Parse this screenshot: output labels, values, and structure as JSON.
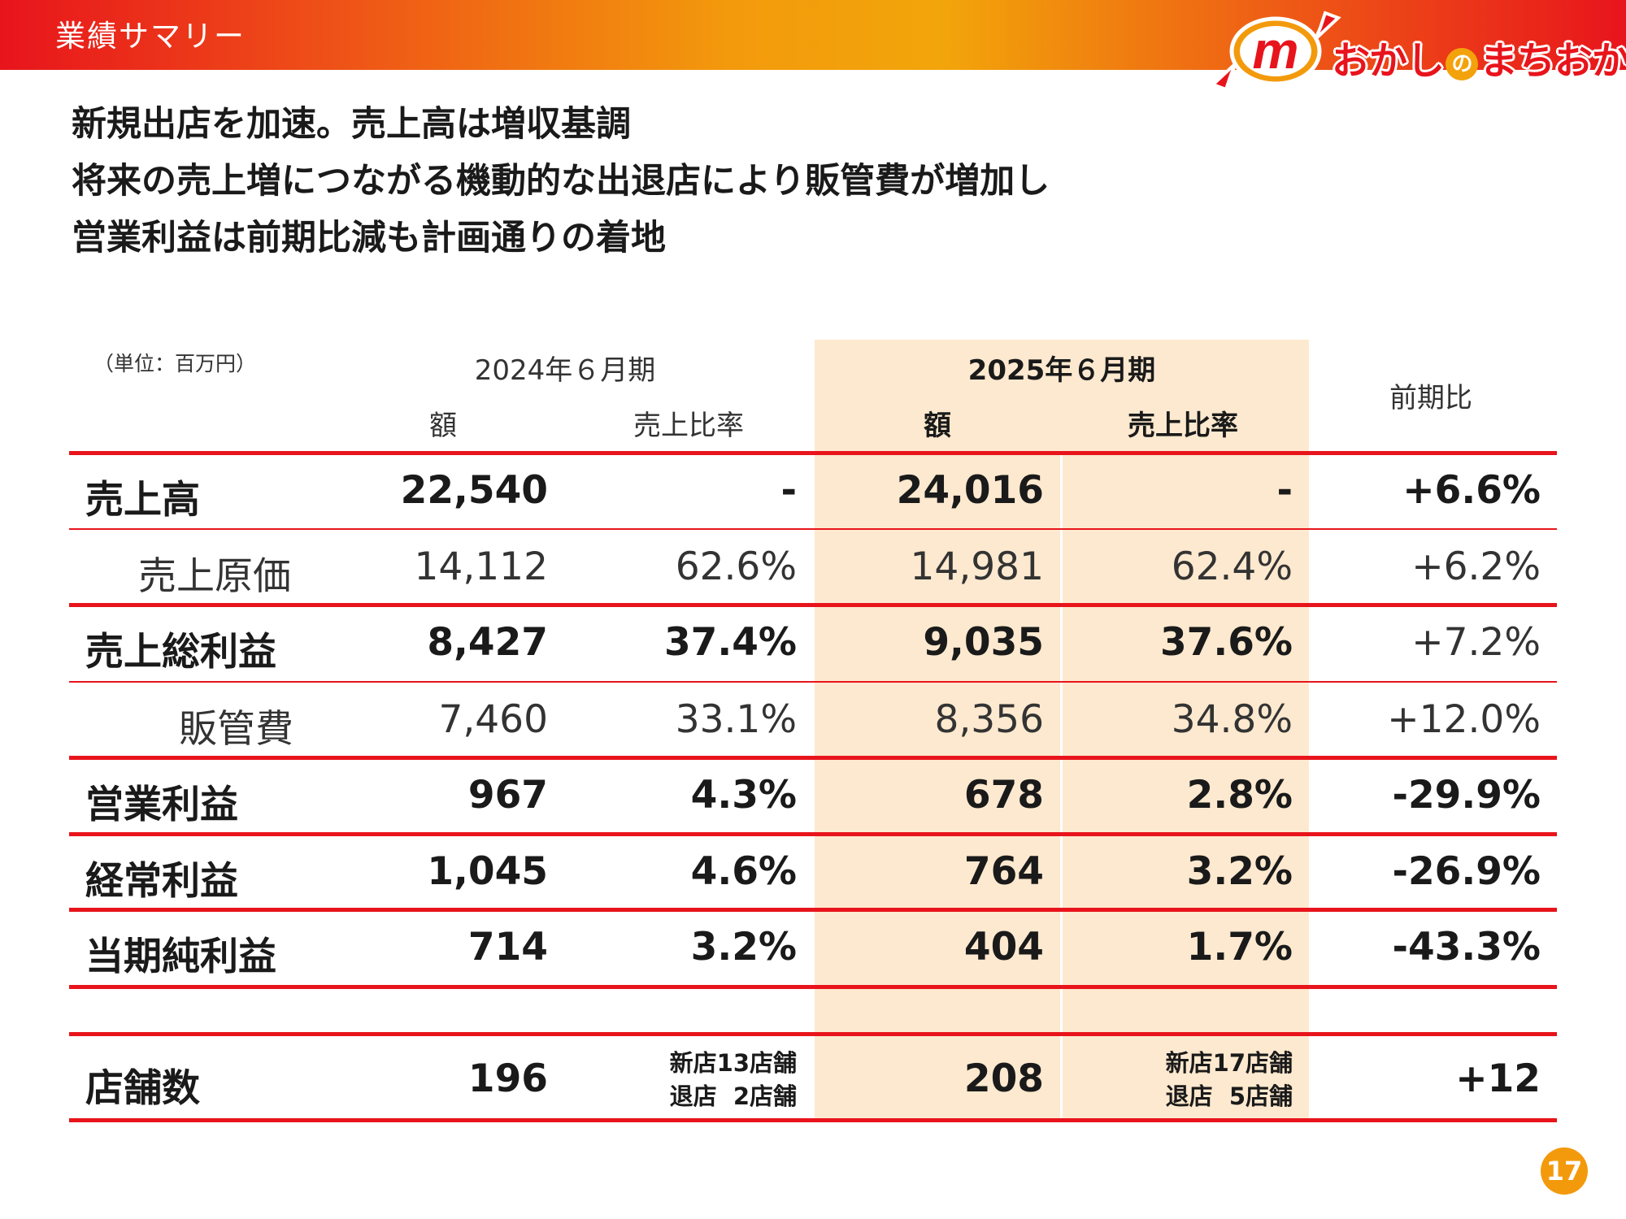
{
  "header": {
    "title": "業績サマリー"
  },
  "logo": {
    "text_before": "おかし",
    "text_no": "の",
    "text_after": "まちおか",
    "brand_color": "#e8141c",
    "accent_color": "#f39a0c"
  },
  "headline": [
    "新規出店を加速。売上高は増収基調",
    "将来の売上増につながる機動的な出退店により販管費が増加し",
    "営業利益は前期比減も計画通りの着地"
  ],
  "table": {
    "unit": "（単位：百万円）",
    "period_prev": "2024年６月期",
    "period_curr": "2025年６月期",
    "col_amount": "額",
    "col_ratio": "売上比率",
    "col_yoy": "前期比",
    "rows": [
      {
        "label": "売上高",
        "prev_amount": "22,540",
        "prev_ratio": "-",
        "curr_amount": "24,016",
        "curr_ratio": "-",
        "yoy": "+6.6%"
      },
      {
        "label": "売上原価",
        "prev_amount": "14,112",
        "prev_ratio": "62.6%",
        "curr_amount": "14,981",
        "curr_ratio": "62.4%",
        "yoy": "+6.2%"
      },
      {
        "label": "売上総利益",
        "prev_amount": "8,427",
        "prev_ratio": "37.4%",
        "curr_amount": "9,035",
        "curr_ratio": "37.6%",
        "yoy": "+7.2%"
      },
      {
        "label": "販管費",
        "prev_amount": "7,460",
        "prev_ratio": "33.1%",
        "curr_amount": "8,356",
        "curr_ratio": "34.8%",
        "yoy": "+12.0%"
      },
      {
        "label": "営業利益",
        "prev_amount": "967",
        "prev_ratio": "4.3%",
        "curr_amount": "678",
        "curr_ratio": "2.8%",
        "yoy": "-29.9%"
      },
      {
        "label": "経常利益",
        "prev_amount": "1,045",
        "prev_ratio": "4.6%",
        "curr_amount": "764",
        "curr_ratio": "3.2%",
        "yoy": "-26.9%"
      },
      {
        "label": "当期純利益",
        "prev_amount": "714",
        "prev_ratio": "3.2%",
        "curr_amount": "404",
        "curr_ratio": "1.7%",
        "yoy": "-43.3%"
      }
    ],
    "stores": {
      "label": "店舗数",
      "prev_count": "196",
      "prev_note_1": "新店13店舗",
      "prev_note_2": "退店  2店舗",
      "curr_count": "208",
      "curr_note_1": "新店17店舗",
      "curr_note_2": "退店  5店舗",
      "yoy": "+12"
    },
    "colors": {
      "rule": "#e8141c",
      "highlight": "#fde9cf"
    }
  },
  "page_number": "17"
}
